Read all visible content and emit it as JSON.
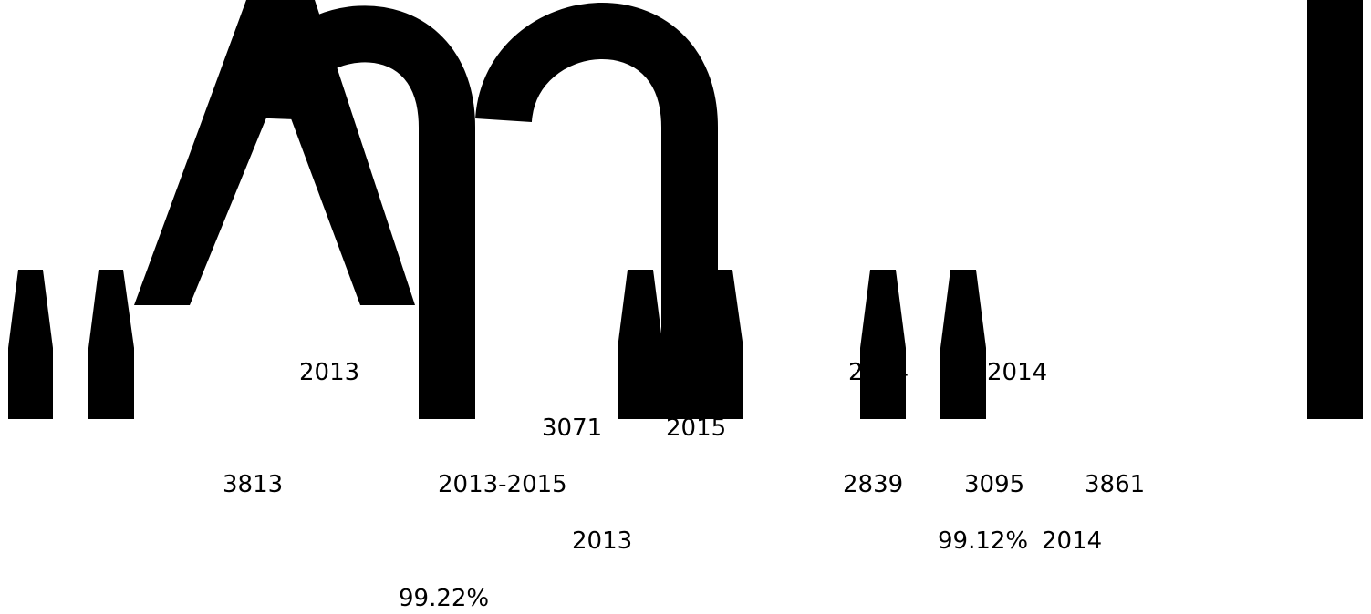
{
  "texts": [
    "2013",
    "3071",
    "2015",
    "2014",
    "2014",
    "3813",
    "2013-2015",
    "2839",
    "3095",
    "3861",
    "2013",
    "99.12%",
    "2014",
    "99.22%"
  ]
}
